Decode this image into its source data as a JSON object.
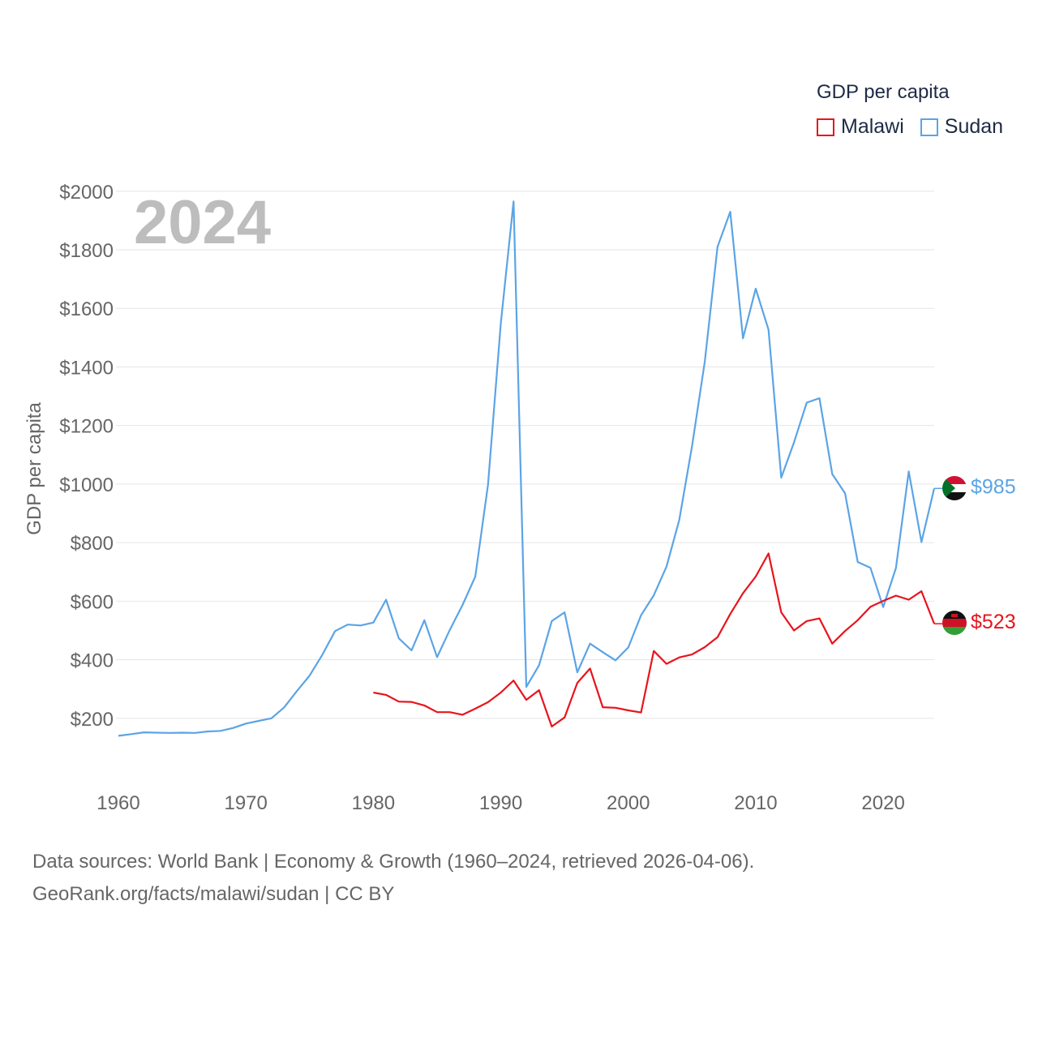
{
  "legend": {
    "title": "GDP per capita",
    "items": [
      {
        "label": "Malawi",
        "color": "#e8141c"
      },
      {
        "label": "Sudan",
        "color": "#5ba4e6"
      }
    ]
  },
  "chart_data": {
    "type": "line",
    "year_label": "2024",
    "ylabel": "GDP per capita",
    "xlabel": "",
    "xlim": [
      1960,
      2024
    ],
    "ylim": [
      0,
      2000
    ],
    "y_ticks": [
      200,
      400,
      600,
      800,
      1000,
      1200,
      1400,
      1600,
      1800,
      2000
    ],
    "y_tick_labels": [
      "$200",
      "$400",
      "$600",
      "$800",
      "$1000",
      "$1200",
      "$1400",
      "$1600",
      "$1800",
      "$2000"
    ],
    "x_ticks": [
      1960,
      1970,
      1980,
      1990,
      2000,
      2010,
      2020
    ],
    "x_tick_labels": [
      "1960",
      "1970",
      "1980",
      "1990",
      "2000",
      "2010",
      "2020"
    ],
    "grid": true,
    "legend_position": "top-right",
    "series": [
      {
        "name": "Sudan",
        "color": "#5ba4e6",
        "end_label": "$985",
        "start_year": 1960,
        "values": [
          140,
          146,
          152,
          151,
          150,
          151,
          150,
          155,
          157,
          167,
          182,
          191,
          200,
          237,
          293,
          346,
          417,
          498,
          520,
          517,
          527,
          605,
          473,
          432,
          535,
          409,
          502,
          587,
          684,
          998,
          1550,
          1965,
          307,
          381,
          532,
          562,
          357,
          455,
          426,
          398,
          442,
          552,
          620,
          718,
          877,
          1128,
          1418,
          1810,
          1930,
          1498,
          1667,
          1527,
          1022,
          1142,
          1278,
          1293,
          1034,
          969,
          734,
          714,
          580,
          713,
          1043,
          802,
          985
        ]
      },
      {
        "name": "Malawi",
        "color": "#e8141c",
        "end_label": "$523",
        "start_year": 1980,
        "values": [
          288,
          280,
          257,
          256,
          244,
          221,
          221,
          212,
          233,
          255,
          288,
          329,
          263,
          296,
          172,
          203,
          321,
          370,
          238,
          236,
          227,
          220,
          430,
          386,
          408,
          418,
          443,
          477,
          556,
          627,
          684,
          763,
          562,
          500,
          532,
          541,
          455,
          498,
          535,
          581,
          601,
          619,
          605,
          634,
          523
        ]
      }
    ],
    "year_label_color": "#bdbdbd",
    "grid_color": "#e6e6e6",
    "tick_color": "#666666"
  },
  "footer": {
    "line1": "Data sources: World Bank | Economy & Growth (1960–2024, retrieved 2026-04-06).",
    "line2": "GeoRank.org/facts/malawi/sudan | CC BY"
  }
}
